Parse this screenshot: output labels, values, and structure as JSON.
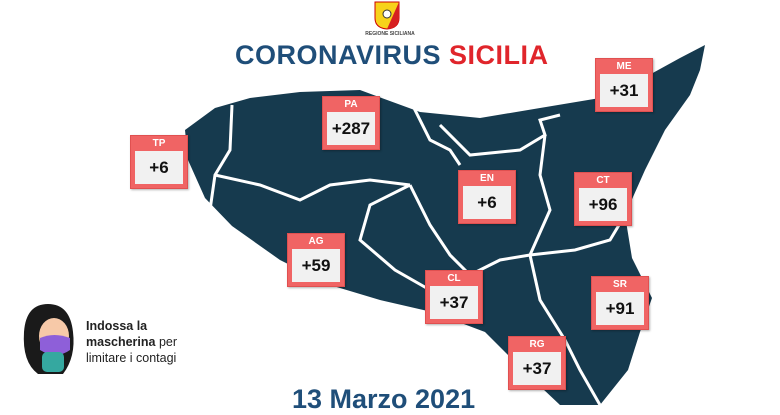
{
  "header": {
    "logo_text": "REGIONE SICILIANA",
    "title_main": "CORONAVIRUS",
    "title_accent": "SICILIA"
  },
  "colors": {
    "title": "#1f4e79",
    "accent": "#e0252b",
    "map": "#163a4e",
    "label_bg": "#f06464"
  },
  "provinces": [
    {
      "code": "TP",
      "value": "+6"
    },
    {
      "code": "PA",
      "value": "+287"
    },
    {
      "code": "ME",
      "value": "+31"
    },
    {
      "code": "EN",
      "value": "+6"
    },
    {
      "code": "CT",
      "value": "+96"
    },
    {
      "code": "AG",
      "value": "+59"
    },
    {
      "code": "CL",
      "value": "+37"
    },
    {
      "code": "SR",
      "value": "+91"
    },
    {
      "code": "RG",
      "value": "+37"
    }
  ],
  "advice": {
    "bold1": "Indossa la",
    "bold2": "mascherina",
    "rest1": "per",
    "rest2": "limitare i contagi"
  },
  "date": "13 Marzo 2021"
}
